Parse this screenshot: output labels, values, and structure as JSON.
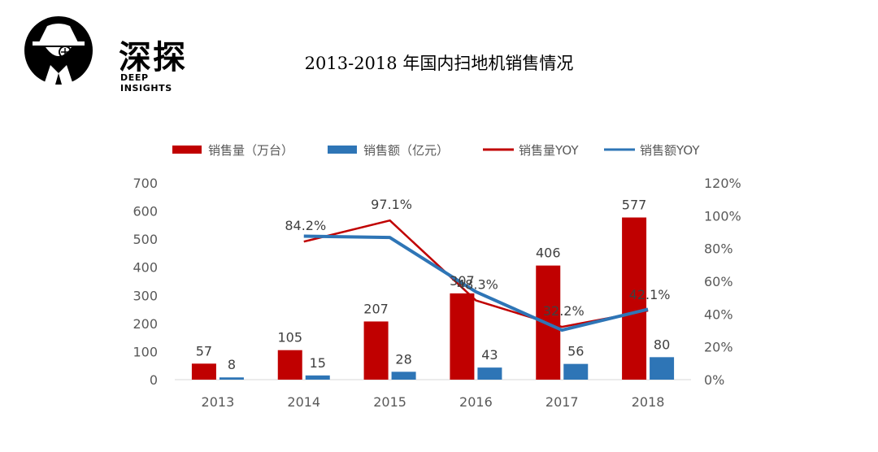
{
  "brand": {
    "name": "深探",
    "subtitle": "DEEP INSIGHTS"
  },
  "colors": {
    "volume": "#C00000",
    "revenue": "#2E75B6",
    "volume_yoy": "#C00000",
    "revenue_yoy": "#2E75B6",
    "axis_text": "#595959"
  },
  "chart_data": {
    "type": "bar",
    "title": "2013-2018 年国内扫地机销售情况",
    "categories": [
      "2013",
      "2014",
      "2015",
      "2016",
      "2017",
      "2018"
    ],
    "series": [
      {
        "name": "销售量（万台）",
        "kind": "bar",
        "axis": "left",
        "values": [
          57,
          105,
          207,
          307,
          406,
          577
        ],
        "labels": [
          "57",
          "105",
          "207",
          "307",
          "406",
          "577"
        ]
      },
      {
        "name": "销售额（亿元）",
        "kind": "bar",
        "axis": "left",
        "values": [
          8,
          15,
          28,
          43,
          56,
          80
        ],
        "labels": [
          "8",
          "15",
          "28",
          "43",
          "56",
          "80"
        ]
      },
      {
        "name": "销售量YOY",
        "kind": "line",
        "axis": "right",
        "values": [
          null,
          84.2,
          97.1,
          48.3,
          32.2,
          42.1
        ],
        "labels": [
          "",
          "84.2%",
          "97.1%",
          "48.3%",
          "32.2%",
          "42.1%"
        ]
      },
      {
        "name": "销售额YOY",
        "kind": "line",
        "axis": "right",
        "values": [
          null,
          87.5,
          86.7,
          53.6,
          30.2,
          42.9
        ]
      }
    ],
    "y_left": {
      "min": 0,
      "max": 700,
      "step": 100,
      "ticks": [
        "0",
        "100",
        "200",
        "300",
        "400",
        "500",
        "600",
        "700"
      ]
    },
    "y_right": {
      "min": 0,
      "max": 120,
      "step": 20,
      "ticks": [
        "0%",
        "20%",
        "40%",
        "60%",
        "80%",
        "100%",
        "120%"
      ]
    },
    "grid": false,
    "legend_position": "top"
  }
}
